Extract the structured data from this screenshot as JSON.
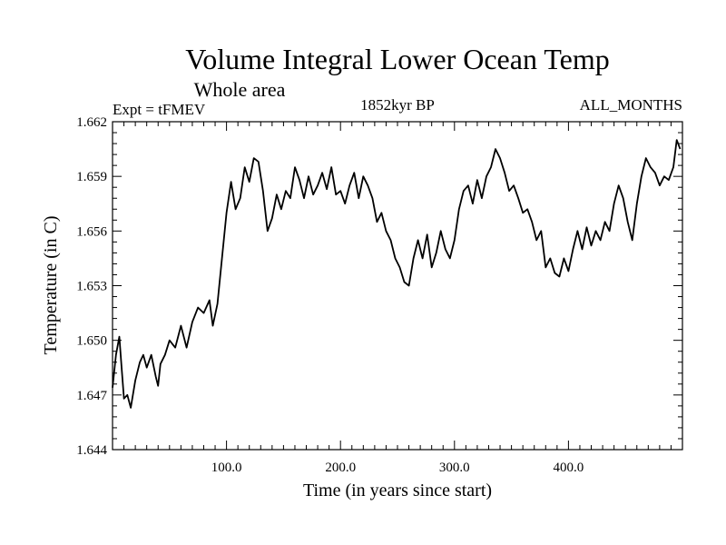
{
  "chart_data": {
    "type": "line",
    "title": "Volume Integral Lower Ocean Temp",
    "subtitle": "Whole area",
    "annotations": {
      "left": "Expt = tFMEV",
      "center": "1852kyr BP",
      "right": "ALL_MONTHS"
    },
    "xlabel": "Time (in years since start)",
    "ylabel": "Temperature (in C)",
    "xlim": [
      0,
      500
    ],
    "ylim": [
      1.644,
      1.662
    ],
    "xticks": [
      100,
      200,
      300,
      400
    ],
    "xtick_labels": [
      "100.0",
      "200.0",
      "300.0",
      "400.0"
    ],
    "yticks": [
      1.644,
      1.647,
      1.65,
      1.653,
      1.656,
      1.659,
      1.662
    ],
    "ytick_labels": [
      "1.644",
      "1.647",
      "1.650",
      "1.653",
      "1.656",
      "1.659",
      "1.662"
    ],
    "grid": false,
    "series": [
      {
        "name": "Temperature",
        "x": [
          0,
          3,
          6,
          8,
          10,
          13,
          16,
          20,
          24,
          27,
          30,
          34,
          38,
          40,
          42,
          46,
          50,
          55,
          60,
          65,
          70,
          75,
          80,
          85,
          88,
          92,
          96,
          100,
          104,
          108,
          112,
          116,
          120,
          124,
          128,
          132,
          136,
          140,
          144,
          148,
          152,
          156,
          160,
          164,
          168,
          172,
          176,
          180,
          184,
          188,
          192,
          196,
          200,
          204,
          208,
          212,
          216,
          220,
          224,
          228,
          232,
          236,
          240,
          244,
          248,
          252,
          256,
          260,
          264,
          268,
          272,
          276,
          280,
          284,
          288,
          292,
          296,
          300,
          304,
          308,
          312,
          316,
          320,
          324,
          328,
          332,
          336,
          340,
          344,
          348,
          352,
          356,
          360,
          364,
          368,
          372,
          376,
          380,
          384,
          388,
          392,
          396,
          400,
          404,
          408,
          412,
          416,
          420,
          424,
          428,
          432,
          436,
          440,
          444,
          448,
          452,
          456,
          460,
          464,
          468,
          472,
          476,
          480,
          484,
          488,
          492,
          495,
          498
        ],
        "values": [
          1.6474,
          1.6492,
          1.6502,
          1.6485,
          1.6468,
          1.647,
          1.6463,
          1.6478,
          1.6488,
          1.6492,
          1.6485,
          1.6492,
          1.648,
          1.6475,
          1.6487,
          1.6492,
          1.65,
          1.6496,
          1.6508,
          1.6496,
          1.651,
          1.6518,
          1.6515,
          1.6522,
          1.6508,
          1.652,
          1.6545,
          1.657,
          1.6587,
          1.6572,
          1.6578,
          1.6595,
          1.6587,
          1.66,
          1.6598,
          1.6582,
          1.656,
          1.6567,
          1.658,
          1.6572,
          1.6582,
          1.6578,
          1.6595,
          1.6588,
          1.6578,
          1.659,
          1.658,
          1.6585,
          1.6592,
          1.6583,
          1.6595,
          1.658,
          1.6582,
          1.6575,
          1.6585,
          1.6592,
          1.6578,
          1.659,
          1.6585,
          1.6578,
          1.6565,
          1.657,
          1.656,
          1.6555,
          1.6545,
          1.654,
          1.6532,
          1.653,
          1.6545,
          1.6555,
          1.6545,
          1.6558,
          1.654,
          1.6548,
          1.656,
          1.655,
          1.6545,
          1.6555,
          1.6572,
          1.6582,
          1.6585,
          1.6575,
          1.6588,
          1.6578,
          1.659,
          1.6595,
          1.6605,
          1.66,
          1.6592,
          1.6582,
          1.6585,
          1.6578,
          1.657,
          1.6572,
          1.6565,
          1.6555,
          1.656,
          1.654,
          1.6545,
          1.6537,
          1.6535,
          1.6545,
          1.6538,
          1.655,
          1.656,
          1.655,
          1.6562,
          1.6552,
          1.656,
          1.6555,
          1.6565,
          1.656,
          1.6575,
          1.6585,
          1.6578,
          1.6565,
          1.6555,
          1.6575,
          1.659,
          1.66,
          1.6595,
          1.6592,
          1.6585,
          1.659,
          1.6588,
          1.6595,
          1.661,
          1.6605
        ]
      }
    ]
  }
}
